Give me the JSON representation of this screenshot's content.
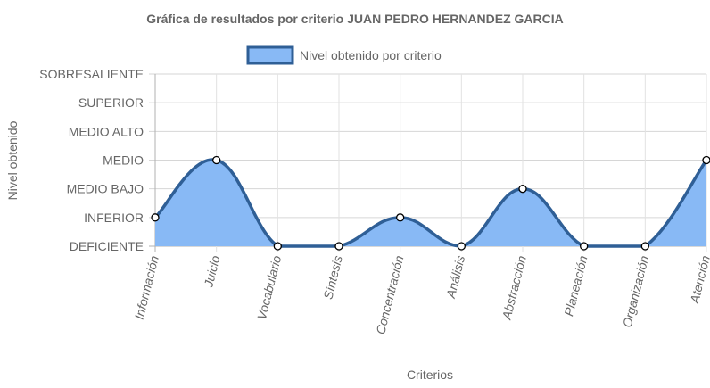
{
  "chart_data": {
    "type": "line",
    "title": "Gráfica de resultados por criterio JUAN PEDRO HERNANDEZ GARCIA",
    "xlabel": "Criterios",
    "ylabel": "Nivel obtenido",
    "categories": [
      "Información",
      "Juicio",
      "Vocabulario",
      "Síntesis",
      "Concentración",
      "Análisis",
      "Abstracción",
      "Planeación",
      "Organización",
      "Atención"
    ],
    "levels": [
      "DEFICIENTE",
      "INFERIOR",
      "MEDIO BAJO",
      "MEDIO",
      "MEDIO ALTO",
      "SUPERIOR",
      "SOBRESALIENTE"
    ],
    "series": [
      {
        "name": "Nivel obtenido por criterio",
        "values": [
          1,
          3,
          0,
          0,
          1,
          0,
          2,
          0,
          0,
          3
        ],
        "fill": true
      }
    ],
    "ylim": [
      0,
      6
    ],
    "grid": true,
    "legend_position": "top",
    "colors": {
      "line": "#2f5f96",
      "fill": "#88b9f5",
      "grid": "#e0e0e0",
      "axis": "#666666"
    }
  }
}
